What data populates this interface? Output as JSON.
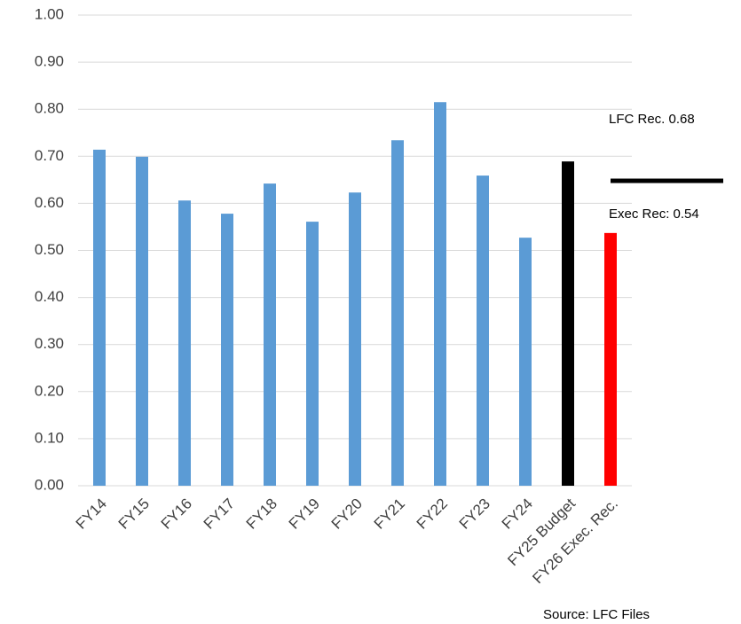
{
  "chart_data": {
    "type": "bar",
    "categories": [
      "FY14",
      "FY15",
      "FY16",
      "FY17",
      "FY18",
      "FY19",
      "FY20",
      "FY21",
      "FY22",
      "FY23",
      "FY24",
      "FY25 Budget",
      "FY26 Exec. Rec."
    ],
    "values": [
      0.714,
      0.699,
      0.606,
      0.578,
      0.642,
      0.561,
      0.623,
      0.734,
      0.815,
      0.659,
      0.527,
      0.689,
      0.537
    ],
    "colors": [
      "#5b9bd5",
      "#5b9bd5",
      "#5b9bd5",
      "#5b9bd5",
      "#5b9bd5",
      "#5b9bd5",
      "#5b9bd5",
      "#5b9bd5",
      "#5b9bd5",
      "#5b9bd5",
      "#5b9bd5",
      "#000000",
      "#ff0000"
    ],
    "ylim": [
      0,
      1
    ],
    "yticks": [
      {
        "value": 0,
        "label": "0.00"
      },
      {
        "value": 0.1,
        "label": "0.10"
      },
      {
        "value": 0.2,
        "label": "0.20"
      },
      {
        "value": 0.3,
        "label": "0.30"
      },
      {
        "value": 0.4,
        "label": "0.40"
      },
      {
        "value": 0.5,
        "label": "0.50"
      },
      {
        "value": 0.6,
        "label": "0.60"
      },
      {
        "value": 0.7,
        "label": "0.70"
      },
      {
        "value": 0.8,
        "label": "0.80"
      },
      {
        "value": 0.9,
        "label": "0.90"
      },
      {
        "value": 1,
        "label": "1.00"
      }
    ],
    "grid": true,
    "annotations": [
      "LFC Rec. 0.68",
      "Exec Rec: 0.54"
    ],
    "source": "Source: LFC Files"
  }
}
